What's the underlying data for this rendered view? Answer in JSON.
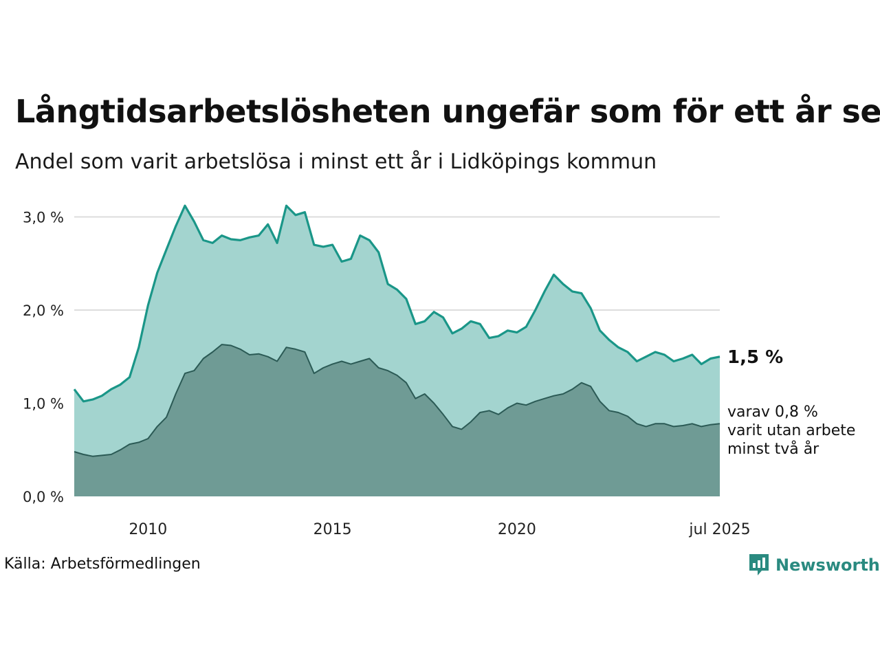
{
  "title": "Långtidsarbetslösheten ungefär som för ett år sen",
  "subtitle": "Andel som varit arbetslösa i minst ett år i Lidköpings kommun",
  "source": "Källa: Arbetsförmedlingen",
  "brand": "Newsworthy",
  "colors": {
    "total_fill": "#a3d4cf",
    "total_line": "#1a9688",
    "sub_fill": "#6f9b95",
    "sub_line": "#2b5a55",
    "grid": "#dddddd",
    "brand": "#2a8a80"
  },
  "chart_data": {
    "type": "area",
    "y_ticks": [
      {
        "value": 0,
        "label": "0,0 %"
      },
      {
        "value": 1,
        "label": "1,0 %"
      },
      {
        "value": 2,
        "label": "2,0 %"
      },
      {
        "value": 3,
        "label": "3,0 %"
      }
    ],
    "ylim": [
      0,
      3.3
    ],
    "x_ticks": [
      {
        "value": 2010,
        "label": "2010"
      },
      {
        "value": 2015,
        "label": "2015"
      },
      {
        "value": 2020,
        "label": "2020"
      },
      {
        "value": 2025.5,
        "label": "jul 2025"
      }
    ],
    "xlim": [
      2008.0,
      2025.5
    ],
    "grid": true,
    "end_labels": {
      "total": "1,5 %",
      "sub_lines": [
        "varav 0,8 %",
        "varit utan arbete",
        "minst två år"
      ]
    },
    "series": [
      {
        "key": "total",
        "x": [
          2008.0,
          2008.25,
          2008.5,
          2008.75,
          2009.0,
          2009.25,
          2009.5,
          2009.75,
          2010.0,
          2010.25,
          2010.5,
          2010.75,
          2011.0,
          2011.25,
          2011.5,
          2011.75,
          2012.0,
          2012.25,
          2012.5,
          2012.75,
          2013.0,
          2013.25,
          2013.5,
          2013.75,
          2014.0,
          2014.25,
          2014.5,
          2014.75,
          2015.0,
          2015.25,
          2015.5,
          2015.75,
          2016.0,
          2016.25,
          2016.5,
          2016.75,
          2017.0,
          2017.25,
          2017.5,
          2017.75,
          2018.0,
          2018.25,
          2018.5,
          2018.75,
          2019.0,
          2019.25,
          2019.5,
          2019.75,
          2020.0,
          2020.25,
          2020.5,
          2020.75,
          2021.0,
          2021.25,
          2021.5,
          2021.75,
          2022.0,
          2022.25,
          2022.5,
          2022.75,
          2023.0,
          2023.25,
          2023.5,
          2023.75,
          2024.0,
          2024.25,
          2024.5,
          2024.75,
          2025.0,
          2025.25,
          2025.5
        ],
        "values": [
          1.15,
          1.02,
          1.04,
          1.08,
          1.15,
          1.2,
          1.28,
          1.6,
          2.05,
          2.4,
          2.65,
          2.9,
          3.12,
          2.95,
          2.75,
          2.72,
          2.8,
          2.76,
          2.75,
          2.78,
          2.8,
          2.92,
          2.72,
          3.12,
          3.02,
          3.05,
          2.7,
          2.68,
          2.7,
          2.52,
          2.55,
          2.8,
          2.75,
          2.62,
          2.28,
          2.22,
          2.12,
          1.85,
          1.88,
          1.98,
          1.92,
          1.75,
          1.8,
          1.88,
          1.85,
          1.7,
          1.72,
          1.78,
          1.76,
          1.82,
          2.0,
          2.2,
          2.38,
          2.28,
          2.2,
          2.18,
          2.02,
          1.78,
          1.68,
          1.6,
          1.55,
          1.45,
          1.5,
          1.55,
          1.52,
          1.45,
          1.48,
          1.52,
          1.42,
          1.48,
          1.5
        ]
      },
      {
        "key": "sub",
        "x": [
          2008.0,
          2008.25,
          2008.5,
          2008.75,
          2009.0,
          2009.25,
          2009.5,
          2009.75,
          2010.0,
          2010.25,
          2010.5,
          2010.75,
          2011.0,
          2011.25,
          2011.5,
          2011.75,
          2012.0,
          2012.25,
          2012.5,
          2012.75,
          2013.0,
          2013.25,
          2013.5,
          2013.75,
          2014.0,
          2014.25,
          2014.5,
          2014.75,
          2015.0,
          2015.25,
          2015.5,
          2015.75,
          2016.0,
          2016.25,
          2016.5,
          2016.75,
          2017.0,
          2017.25,
          2017.5,
          2017.75,
          2018.0,
          2018.25,
          2018.5,
          2018.75,
          2019.0,
          2019.25,
          2019.5,
          2019.75,
          2020.0,
          2020.25,
          2020.5,
          2020.75,
          2021.0,
          2021.25,
          2021.5,
          2021.75,
          2022.0,
          2022.25,
          2022.5,
          2022.75,
          2023.0,
          2023.25,
          2023.5,
          2023.75,
          2024.0,
          2024.25,
          2024.5,
          2024.75,
          2025.0,
          2025.25,
          2025.5
        ],
        "values": [
          0.48,
          0.45,
          0.43,
          0.44,
          0.45,
          0.5,
          0.56,
          0.58,
          0.62,
          0.75,
          0.85,
          1.1,
          1.32,
          1.35,
          1.48,
          1.55,
          1.63,
          1.62,
          1.58,
          1.52,
          1.53,
          1.5,
          1.45,
          1.6,
          1.58,
          1.55,
          1.32,
          1.38,
          1.42,
          1.45,
          1.42,
          1.45,
          1.48,
          1.38,
          1.35,
          1.3,
          1.22,
          1.05,
          1.1,
          1.0,
          0.88,
          0.75,
          0.72,
          0.8,
          0.9,
          0.92,
          0.88,
          0.95,
          1.0,
          0.98,
          1.02,
          1.05,
          1.08,
          1.1,
          1.15,
          1.22,
          1.18,
          1.02,
          0.92,
          0.9,
          0.86,
          0.78,
          0.75,
          0.78,
          0.78,
          0.75,
          0.76,
          0.78,
          0.75,
          0.77,
          0.78
        ]
      }
    ]
  }
}
